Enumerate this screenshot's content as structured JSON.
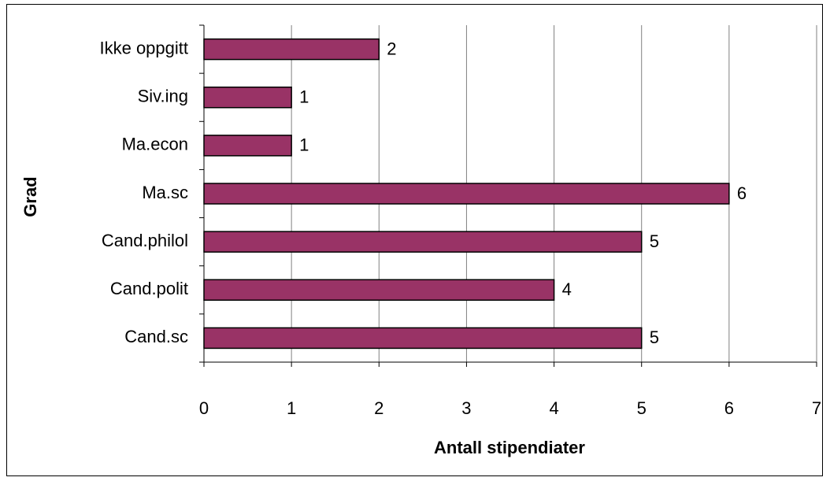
{
  "chart_data": {
    "type": "bar",
    "orientation": "horizontal",
    "x_label": "Antall stipendiater",
    "y_label": "Grad",
    "categories": [
      "Ikke oppgitt",
      "Siv.ing",
      "Ma.econ",
      "Ma.sc",
      "Cand.philol",
      "Cand.polit",
      "Cand.sc"
    ],
    "values": [
      2,
      1,
      1,
      6,
      5,
      4,
      5
    ],
    "color": "#993366",
    "xlim": [
      0,
      7
    ],
    "xticks": [
      0,
      1,
      2,
      3,
      4,
      5,
      6,
      7
    ],
    "grid": true
  }
}
